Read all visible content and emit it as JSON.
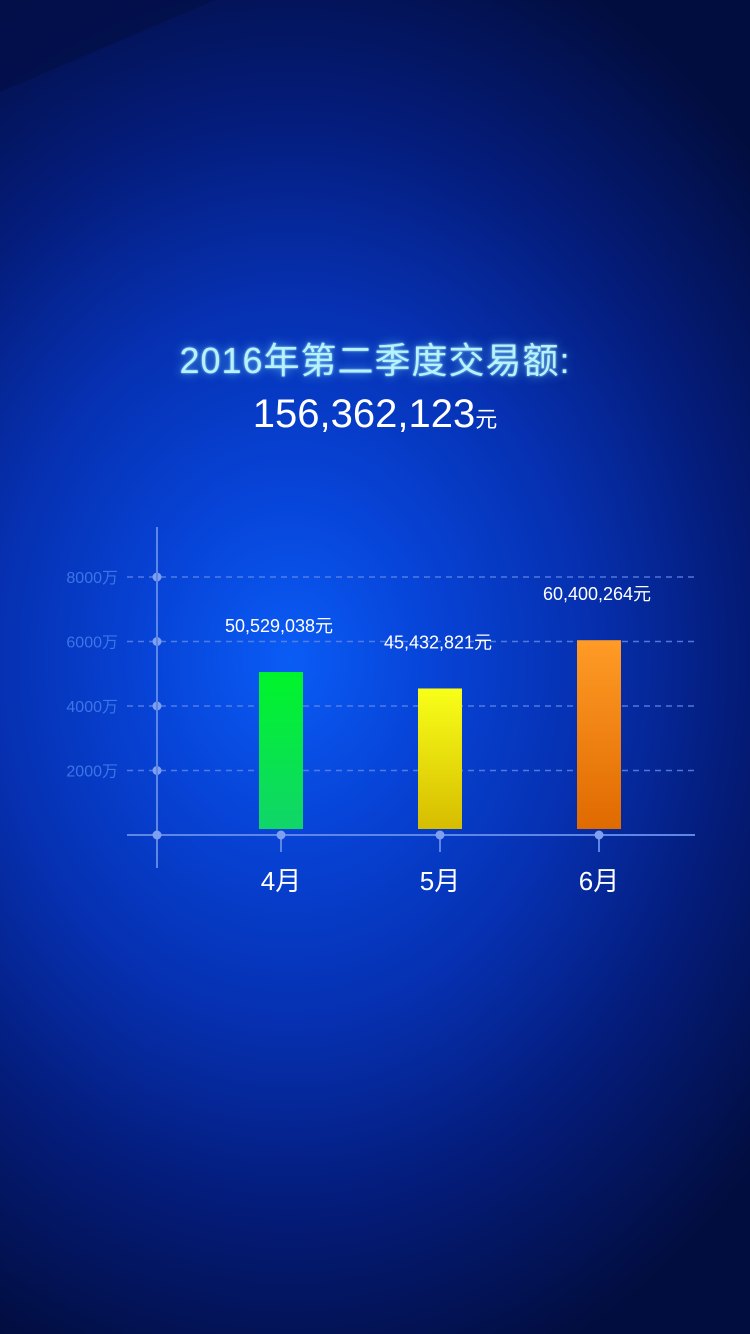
{
  "header": {
    "title": "2016年第二季度交易额:",
    "total_amount": "156,362,123",
    "total_unit": "元"
  },
  "chart_data": {
    "type": "bar",
    "categories": [
      "4月",
      "5月",
      "6月"
    ],
    "values": [
      5052.9038,
      4543.2821,
      6040.0264
    ],
    "value_labels": [
      "50,529,038元",
      "45,432,821元",
      "60,400,264元"
    ],
    "yticks": [
      2000,
      4000,
      6000,
      8000
    ],
    "ytick_labels": [
      "2000万",
      "4000万",
      "6000万",
      "8000万"
    ],
    "ylim": [
      0,
      8000
    ],
    "grid": true,
    "colors": [
      [
        "#00f52a",
        "#10d56a"
      ],
      [
        "#f9ff19",
        "#d6bd00"
      ],
      [
        "#ff9b26",
        "#e06a00"
      ]
    ],
    "axis_color": "#5d86e6"
  }
}
